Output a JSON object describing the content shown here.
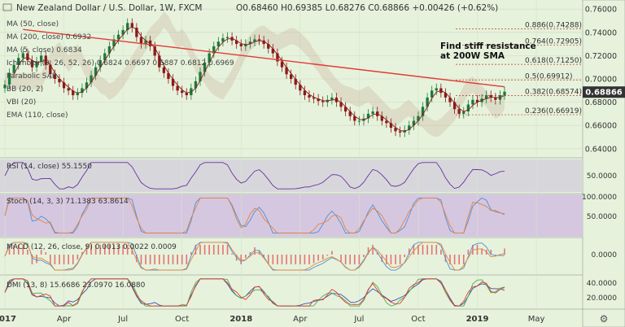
{
  "header": {
    "symbol": "New Zealand Dollar / U.S. Dollar, 1W, FXCM",
    "ohlc": "O0.68460  H0.69385  L0.68276  C0.68866  +0.00426 (+0.62%)"
  },
  "indicators": [
    {
      "label": "MA (50, close)",
      "value": ""
    },
    {
      "label": "MA (200, close)",
      "value": "0.6932"
    },
    {
      "label": "MA (5, close)",
      "value": "0.6834"
    },
    {
      "label": "Ichimoku (9, 26, 52, 26)",
      "value": "0.6824  0.6697  0.6887  0.6812  0.6969"
    },
    {
      "label": "Parabolic SAR",
      "value": ""
    },
    {
      "label": "BB (20, 2)",
      "value": ""
    },
    {
      "label": "VBI (20)",
      "value": ""
    },
    {
      "label": "EMA (110, close)",
      "value": ""
    }
  ],
  "annotation": "Find stiff resistance at 200W SMA",
  "colors": {
    "bullish": "#1a7a3a",
    "bearish": "#8b1a1a",
    "sma200": "#e53935",
    "rsi": "#6a2fa0",
    "stoch_k": "#4a90d9",
    "stoch_d": "#e8833a",
    "macd": "#4a90d9",
    "signal": "#e8833a",
    "histogram": "#e57373",
    "dmi_plus": "#4caf50",
    "dmi_minus": "#e53935",
    "adx": "#3f51b5",
    "fib": "#c0392b",
    "cloud": "#c8b4a0",
    "price_badge": "#333333"
  },
  "chart_data": [
    {
      "type": "candlestick",
      "title": "New Zealand Dollar / U.S. Dollar, 1W, FXCM",
      "ylim": [
        0.635,
        0.765
      ],
      "price_ticks": [
        "0.76000",
        "0.74000",
        "0.72000",
        "0.70000",
        "0.68000",
        "0.66000",
        "0.64000"
      ],
      "price_tick_values": [
        0.76,
        0.74,
        0.72,
        0.7,
        0.68,
        0.66,
        0.64
      ],
      "current_price": "0.68866",
      "x_ticks": [
        "2017",
        "Apr",
        "Jul",
        "Oct",
        "2018",
        "Apr",
        "Jul",
        "Oct",
        "2019",
        "May"
      ],
      "x_tick_weeks": [
        0,
        13,
        26,
        39,
        52,
        65,
        78,
        91,
        104,
        117
      ],
      "fib_levels": [
        {
          "label": "0.886(0.74288)",
          "value": 0.74288
        },
        {
          "label": "0.764(0.72905)",
          "value": 0.72905
        },
        {
          "label": "0.618(0.71250)",
          "value": 0.7125
        },
        {
          "label": "0.5(0.69912)",
          "value": 0.69912
        },
        {
          "label": "0.382(0.68574)",
          "value": 0.68574
        },
        {
          "label": "0.236(0.66919)",
          "value": 0.66919
        }
      ],
      "sma200_start_end": [
        0.7425,
        0.6932
      ],
      "close": [
        0.695,
        0.705,
        0.712,
        0.718,
        0.722,
        0.716,
        0.71,
        0.715,
        0.72,
        0.712,
        0.704,
        0.7,
        0.697,
        0.692,
        0.69,
        0.686,
        0.688,
        0.692,
        0.697,
        0.703,
        0.71,
        0.716,
        0.722,
        0.728,
        0.734,
        0.738,
        0.742,
        0.748,
        0.744,
        0.736,
        0.73,
        0.733,
        0.728,
        0.72,
        0.71,
        0.705,
        0.7,
        0.694,
        0.69,
        0.688,
        0.686,
        0.692,
        0.698,
        0.706,
        0.714,
        0.722,
        0.728,
        0.732,
        0.735,
        0.736,
        0.733,
        0.73,
        0.728,
        0.73,
        0.732,
        0.734,
        0.733,
        0.73,
        0.726,
        0.722,
        0.715,
        0.71,
        0.704,
        0.7,
        0.695,
        0.69,
        0.686,
        0.684,
        0.683,
        0.681,
        0.68,
        0.682,
        0.684,
        0.68,
        0.676,
        0.672,
        0.668,
        0.664,
        0.664,
        0.666,
        0.67,
        0.672,
        0.668,
        0.664,
        0.662,
        0.658,
        0.655,
        0.654,
        0.656,
        0.66,
        0.664,
        0.668,
        0.676,
        0.684,
        0.69,
        0.692,
        0.688,
        0.684,
        0.68,
        0.674,
        0.67,
        0.672,
        0.678,
        0.682,
        0.68,
        0.683,
        0.686,
        0.684,
        0.682,
        0.686,
        0.689
      ],
      "rsi": {
        "label": "RSI (14, close)",
        "value": "55.1550",
        "ticks": [
          "50.0000"
        ]
      },
      "stoch": {
        "label": "Stoch (14, 3, 3)",
        "value": "71.1383  63.8614",
        "ticks": [
          "100.0000",
          "50.0000"
        ]
      },
      "macd": {
        "label": "MACD (12, 26, close, 9)",
        "value": "0.0013  0.0022  0.0009",
        "ticks": [
          "0.0000"
        ]
      },
      "dmi": {
        "label": "DMI (13, 8)",
        "value": "15.6686  23.0970  16.0880",
        "ticks": [
          "40.0000",
          "20.0000"
        ]
      }
    }
  ]
}
